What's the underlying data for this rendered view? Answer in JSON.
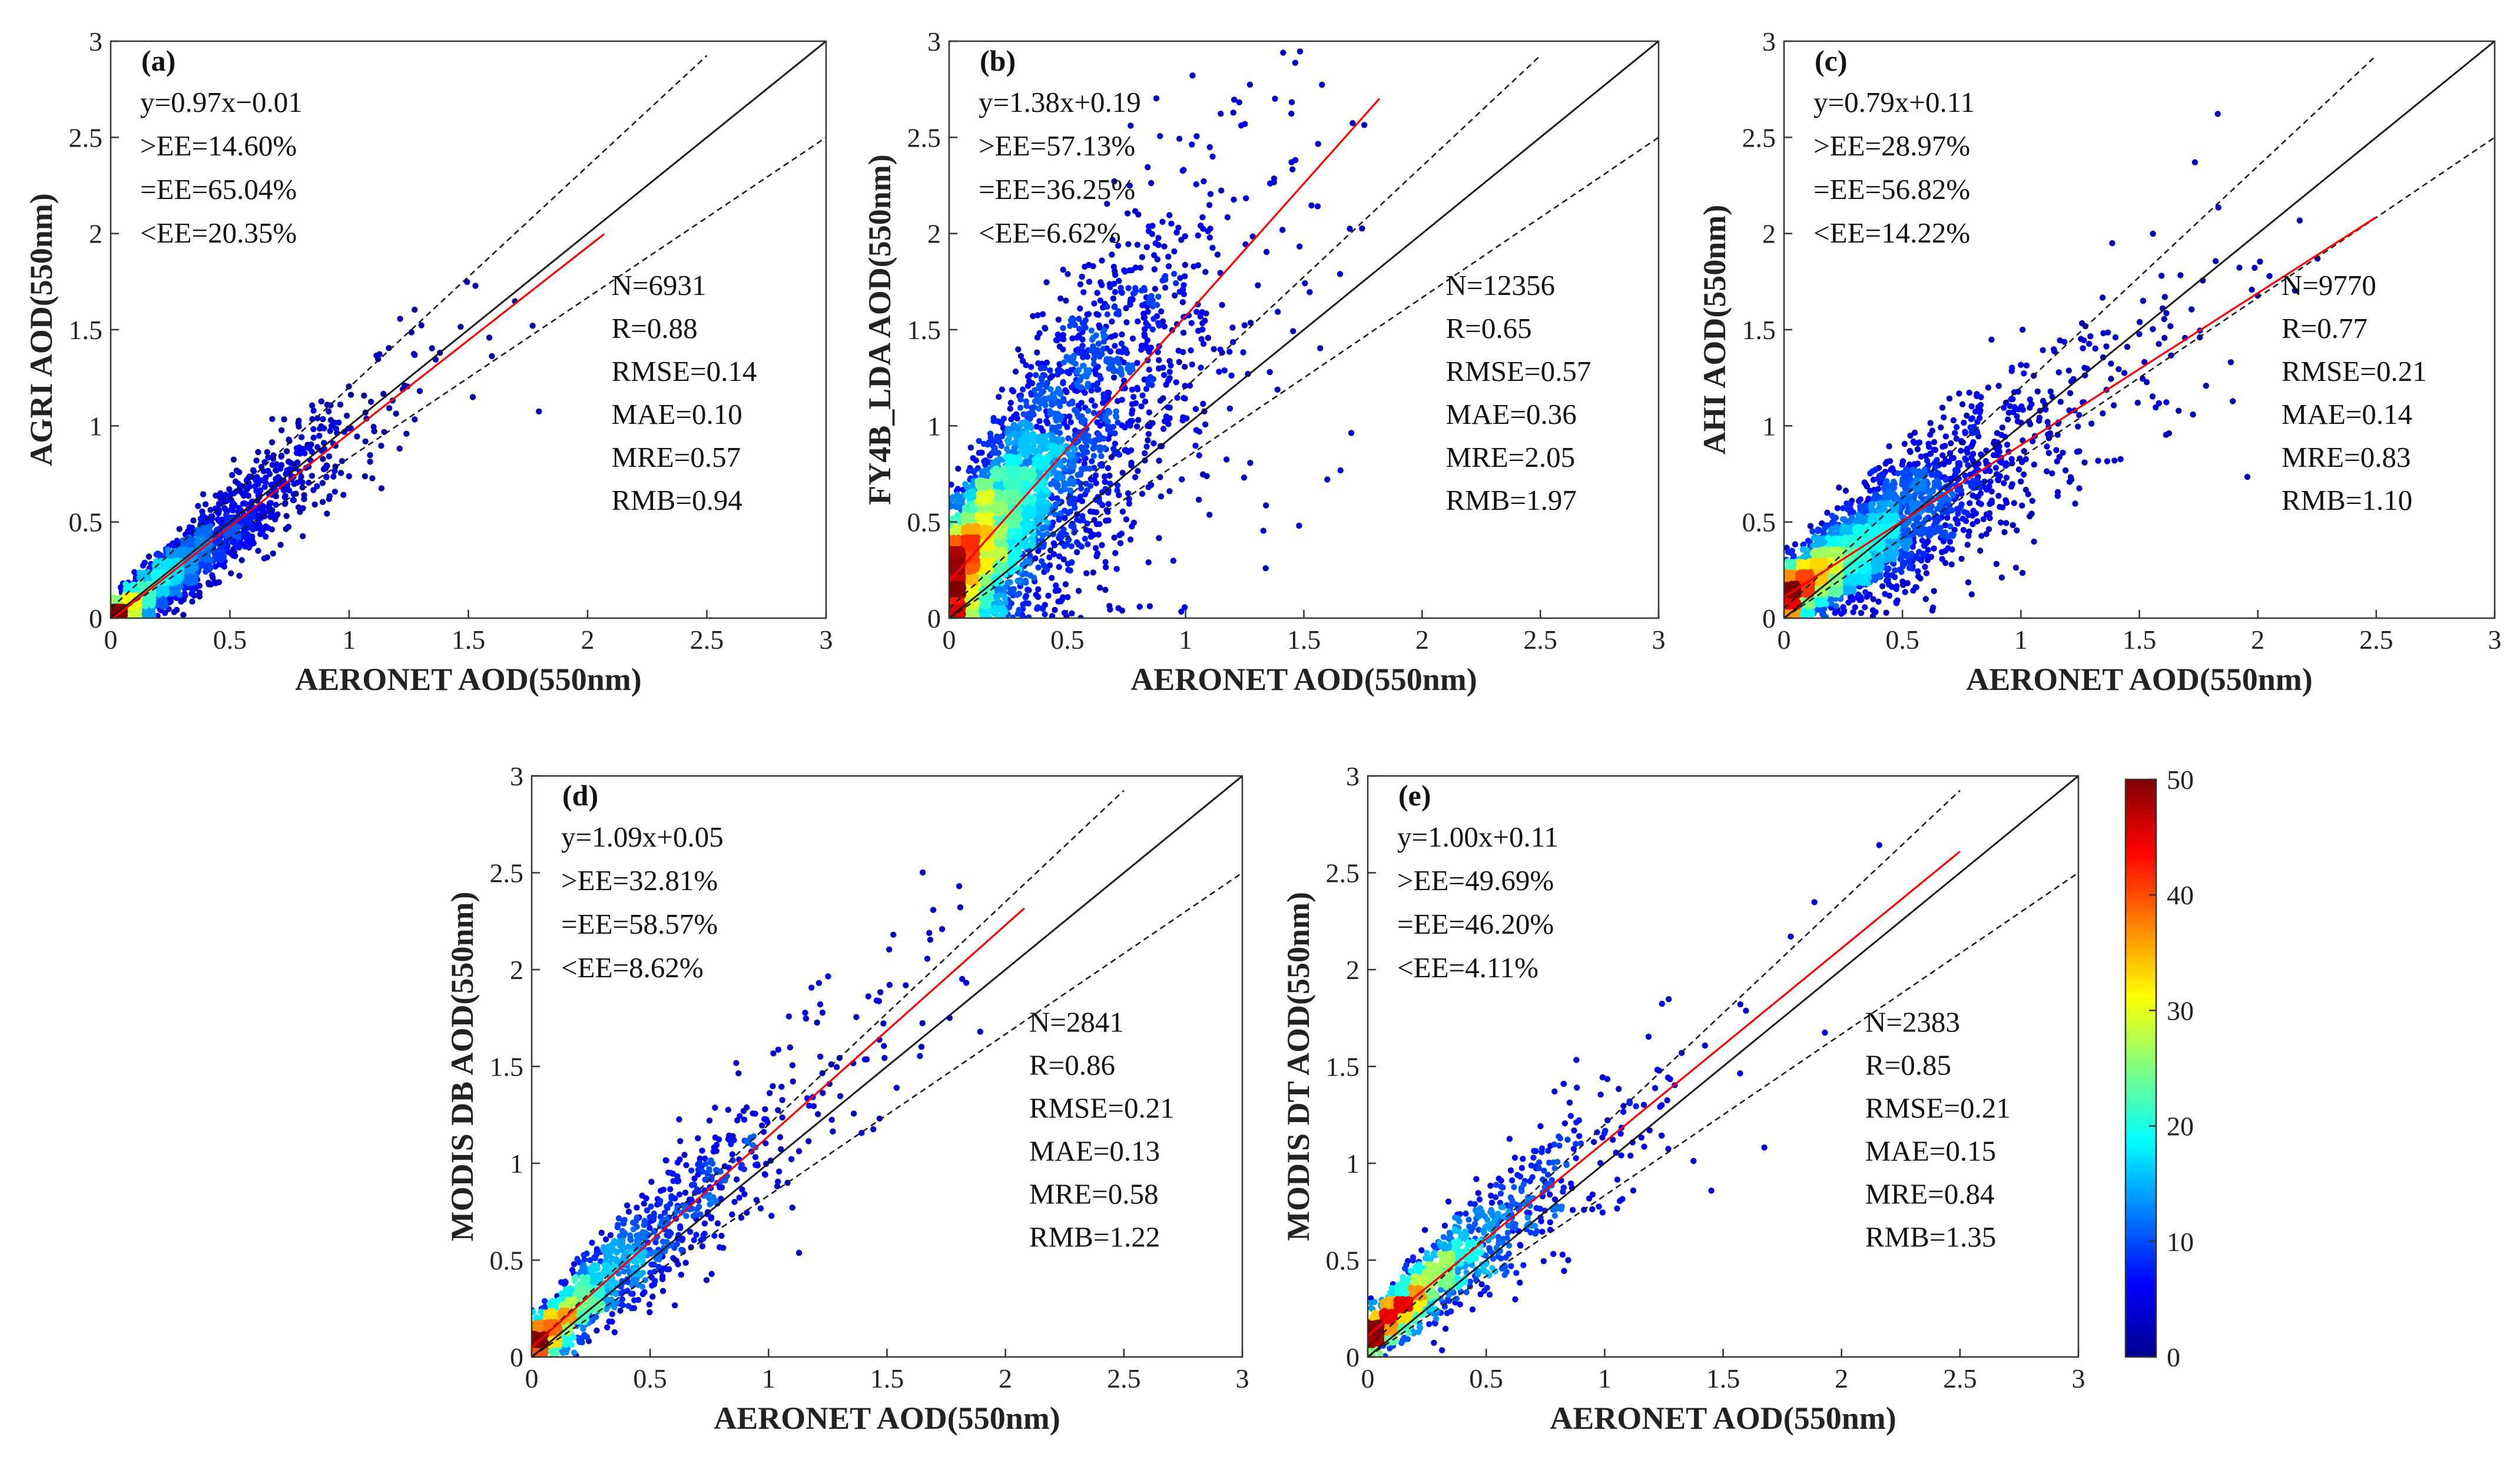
{
  "colors": {
    "one_to_one": "#1a1a1a",
    "ee_lines": "#1a1a1a",
    "fit_line": "#ff0000",
    "axis": "#333333",
    "colormap": [
      "#00008f",
      "#0000ff",
      "#0080ff",
      "#00ffff",
      "#80ff80",
      "#ffff00",
      "#ff8000",
      "#ff0000",
      "#800000"
    ]
  },
  "chart_data": [
    {
      "type": "scatter",
      "panel": "(a)",
      "xlabel": "AERONET AOD(550nm)",
      "ylabel": "AGRI AOD(550nm)",
      "xlim": [
        0,
        3
      ],
      "ylim": [
        0,
        3
      ],
      "xticks": [
        "0",
        "0.5",
        "1",
        "1.5",
        "2",
        "2.5",
        "3"
      ],
      "yticks": [
        "0",
        "0.5",
        "1",
        "1.5",
        "2",
        "2.5",
        "3"
      ],
      "fit": {
        "slope": 0.97,
        "intercept": -0.01,
        "x_range": [
          0,
          2.07
        ]
      },
      "ee_text": [
        "y=0.97x−0.01",
        ">EE=14.60%",
        "=EE=65.04%",
        "<EE=20.35%"
      ],
      "stats_text": [
        "N=6931",
        "R=0.88",
        "RMSE=0.14",
        "MAE=0.10",
        "MRE=0.57",
        "RMB=0.94"
      ],
      "sim": {
        "seed": 11,
        "n": 2400,
        "slope": 0.97,
        "intercept": -0.01,
        "sigma": 0.13,
        "xscale": 0.28,
        "xmax": 2.1,
        "ymax": 2.6
      }
    },
    {
      "type": "scatter",
      "panel": "(b)",
      "xlabel": "AERONET AOD(550nm)",
      "ylabel": "FY4B_LDA AOD(550nm)",
      "xlim": [
        0,
        3
      ],
      "ylim": [
        0,
        3
      ],
      "xticks": [
        "0",
        "0.5",
        "1",
        "1.5",
        "2",
        "2.5",
        "3"
      ],
      "yticks": [
        "0",
        "0.5",
        "1",
        "1.5",
        "2",
        "2.5",
        "3"
      ],
      "fit": {
        "slope": 1.38,
        "intercept": 0.19,
        "x_range": [
          0,
          1.82
        ]
      },
      "ee_text": [
        "y=1.38x+0.19",
        ">EE=57.13%",
        "=EE=36.25%",
        "<EE=6.62%"
      ],
      "stats_text": [
        "N=12356",
        "R=0.65",
        "RMSE=0.57",
        "MAE=0.36",
        "MRE=2.05",
        "RMB=1.97"
      ],
      "sim": {
        "seed": 23,
        "n": 4200,
        "slope": 1.38,
        "intercept": 0.19,
        "sigma": 0.42,
        "xscale": 0.3,
        "xmax": 1.85,
        "ymax": 3.0
      }
    },
    {
      "type": "scatter",
      "panel": "(c)",
      "xlabel": "AERONET AOD(550nm)",
      "ylabel": "AHI AOD(550nm)",
      "xlim": [
        0,
        3
      ],
      "ylim": [
        0,
        3
      ],
      "xticks": [
        "0",
        "0.5",
        "1",
        "1.5",
        "2",
        "2.5",
        "3"
      ],
      "yticks": [
        "0",
        "0.5",
        "1",
        "1.5",
        "2",
        "2.5",
        "3"
      ],
      "fit": {
        "slope": 0.79,
        "intercept": 0.11,
        "x_range": [
          0,
          2.5
        ]
      },
      "ee_text": [
        "y=0.79x+0.11",
        ">EE=28.97%",
        "=EE=56.82%",
        "<EE=14.22%"
      ],
      "stats_text": [
        "N=9770",
        "R=0.77",
        "RMSE=0.21",
        "MAE=0.14",
        "MRE=0.83",
        "RMB=1.10"
      ],
      "sim": {
        "seed": 37,
        "n": 3400,
        "slope": 0.79,
        "intercept": 0.11,
        "sigma": 0.2,
        "xscale": 0.34,
        "xmax": 2.5,
        "ymax": 2.85
      }
    },
    {
      "type": "scatter",
      "panel": "(d)",
      "xlabel": "AERONET AOD(550nm)",
      "ylabel": "MODIS DB AOD(550nm)",
      "xlim": [
        0,
        3
      ],
      "ylim": [
        0,
        3
      ],
      "xticks": [
        "0",
        "0.5",
        "1",
        "1.5",
        "2",
        "2.5",
        "3"
      ],
      "yticks": [
        "0",
        "0.5",
        "1",
        "1.5",
        "2",
        "2.5",
        "3"
      ],
      "fit": {
        "slope": 1.09,
        "intercept": 0.05,
        "x_range": [
          0,
          2.08
        ]
      },
      "ee_text": [
        "y=1.09x+0.05",
        ">EE=32.81%",
        "=EE=58.57%",
        "<EE=8.62%"
      ],
      "stats_text": [
        "N=2841",
        "R=0.86",
        "RMSE=0.21",
        "MAE=0.13",
        "MRE=0.58",
        "RMB=1.22"
      ],
      "sim": {
        "seed": 51,
        "n": 1500,
        "slope": 1.09,
        "intercept": 0.05,
        "sigma": 0.17,
        "xscale": 0.35,
        "xmax": 1.9,
        "ymax": 2.95
      }
    },
    {
      "type": "scatter",
      "panel": "(e)",
      "xlabel": "AERONET AOD(550nm)",
      "ylabel": "MODIS DT AOD(550nm)",
      "xlim": [
        0,
        3
      ],
      "ylim": [
        0,
        3
      ],
      "xticks": [
        "0",
        "0.5",
        "1",
        "1.5",
        "2",
        "2.5",
        "3"
      ],
      "yticks": [
        "0",
        "0.5",
        "1",
        "1.5",
        "2",
        "2.5",
        "3"
      ],
      "fit": {
        "slope": 1.0,
        "intercept": 0.11,
        "x_range": [
          0,
          2.5
        ]
      },
      "ee_text": [
        "y=1.00x+0.11",
        ">EE=49.69%",
        "=EE=46.20%",
        "<EE=4.11%"
      ],
      "stats_text": [
        "N=2383",
        "R=0.85",
        "RMSE=0.21",
        "MAE=0.15",
        "MRE=0.84",
        "RMB=1.35"
      ],
      "sim": {
        "seed": 67,
        "n": 1300,
        "slope": 1.0,
        "intercept": 0.11,
        "sigma": 0.16,
        "xscale": 0.32,
        "xmax": 2.5,
        "ymax": 2.7
      }
    }
  ],
  "colorbar": {
    "min": 0,
    "max": 50,
    "ticks": [
      "0",
      "10",
      "20",
      "30",
      "40",
      "50"
    ]
  }
}
